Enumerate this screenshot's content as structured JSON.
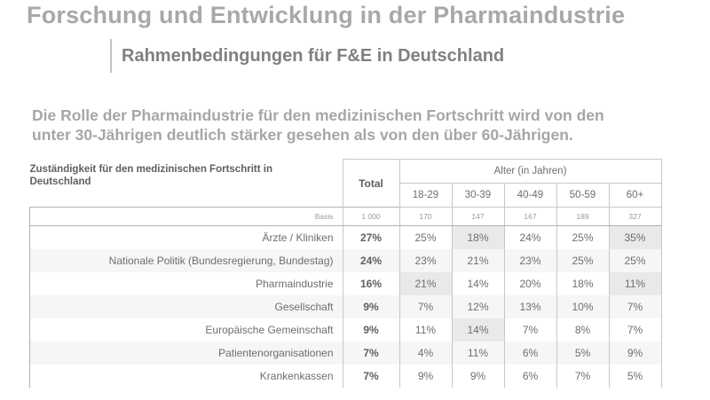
{
  "title": "Forschung und Entwicklung in der Pharmaindustrie",
  "subtitle": "Rahmenbedingungen für F&E in Deutschland",
  "lead": {
    "line1": "Die Rolle der Pharmaindustrie für den medizinischen Fortschritt wird von den",
    "line2": "unter 30-Jährigen deutlich stärker gesehen als von den über 60-Jährigen."
  },
  "table": {
    "question_line1": "Zuständigkeit für den medizinischen Fortschritt in",
    "question_line2": "Deutschland",
    "total_header": "Total",
    "age_group_header": "Alter (in Jahren)",
    "age_columns": [
      "18-29",
      "30-39",
      "40-49",
      "50-59",
      "60+"
    ],
    "basis": {
      "label": "Basis",
      "total": "1 000",
      "ages": [
        "170",
        "147",
        "167",
        "189",
        "327"
      ]
    },
    "rows": [
      {
        "label": "Ärzte / Kliniken",
        "total": "27%",
        "ages": [
          "25%",
          "18%",
          "24%",
          "25%",
          "35%"
        ],
        "highlight": [
          1,
          4
        ]
      },
      {
        "label": "Nationale Politik (Bundesregierung, Bundestag)",
        "total": "24%",
        "ages": [
          "23%",
          "21%",
          "23%",
          "25%",
          "25%"
        ],
        "highlight": []
      },
      {
        "label": "Pharmaindustrie",
        "total": "16%",
        "ages": [
          "21%",
          "14%",
          "20%",
          "18%",
          "11%"
        ],
        "highlight": [
          0,
          4
        ]
      },
      {
        "label": "Gesellschaft",
        "total": "9%",
        "ages": [
          "7%",
          "12%",
          "13%",
          "10%",
          "7%"
        ],
        "highlight": []
      },
      {
        "label": "Europäische Gemeinschaft",
        "total": "9%",
        "ages": [
          "11%",
          "14%",
          "7%",
          "8%",
          "7%"
        ],
        "highlight": [
          1
        ]
      },
      {
        "label": "Patientenorganisationen",
        "total": "7%",
        "ages": [
          "4%",
          "11%",
          "6%",
          "5%",
          "9%"
        ],
        "highlight": []
      },
      {
        "label": "Krankenkassen",
        "total": "7%",
        "ages": [
          "9%",
          "9%",
          "6%",
          "7%",
          "5%"
        ],
        "highlight": []
      }
    ]
  }
}
